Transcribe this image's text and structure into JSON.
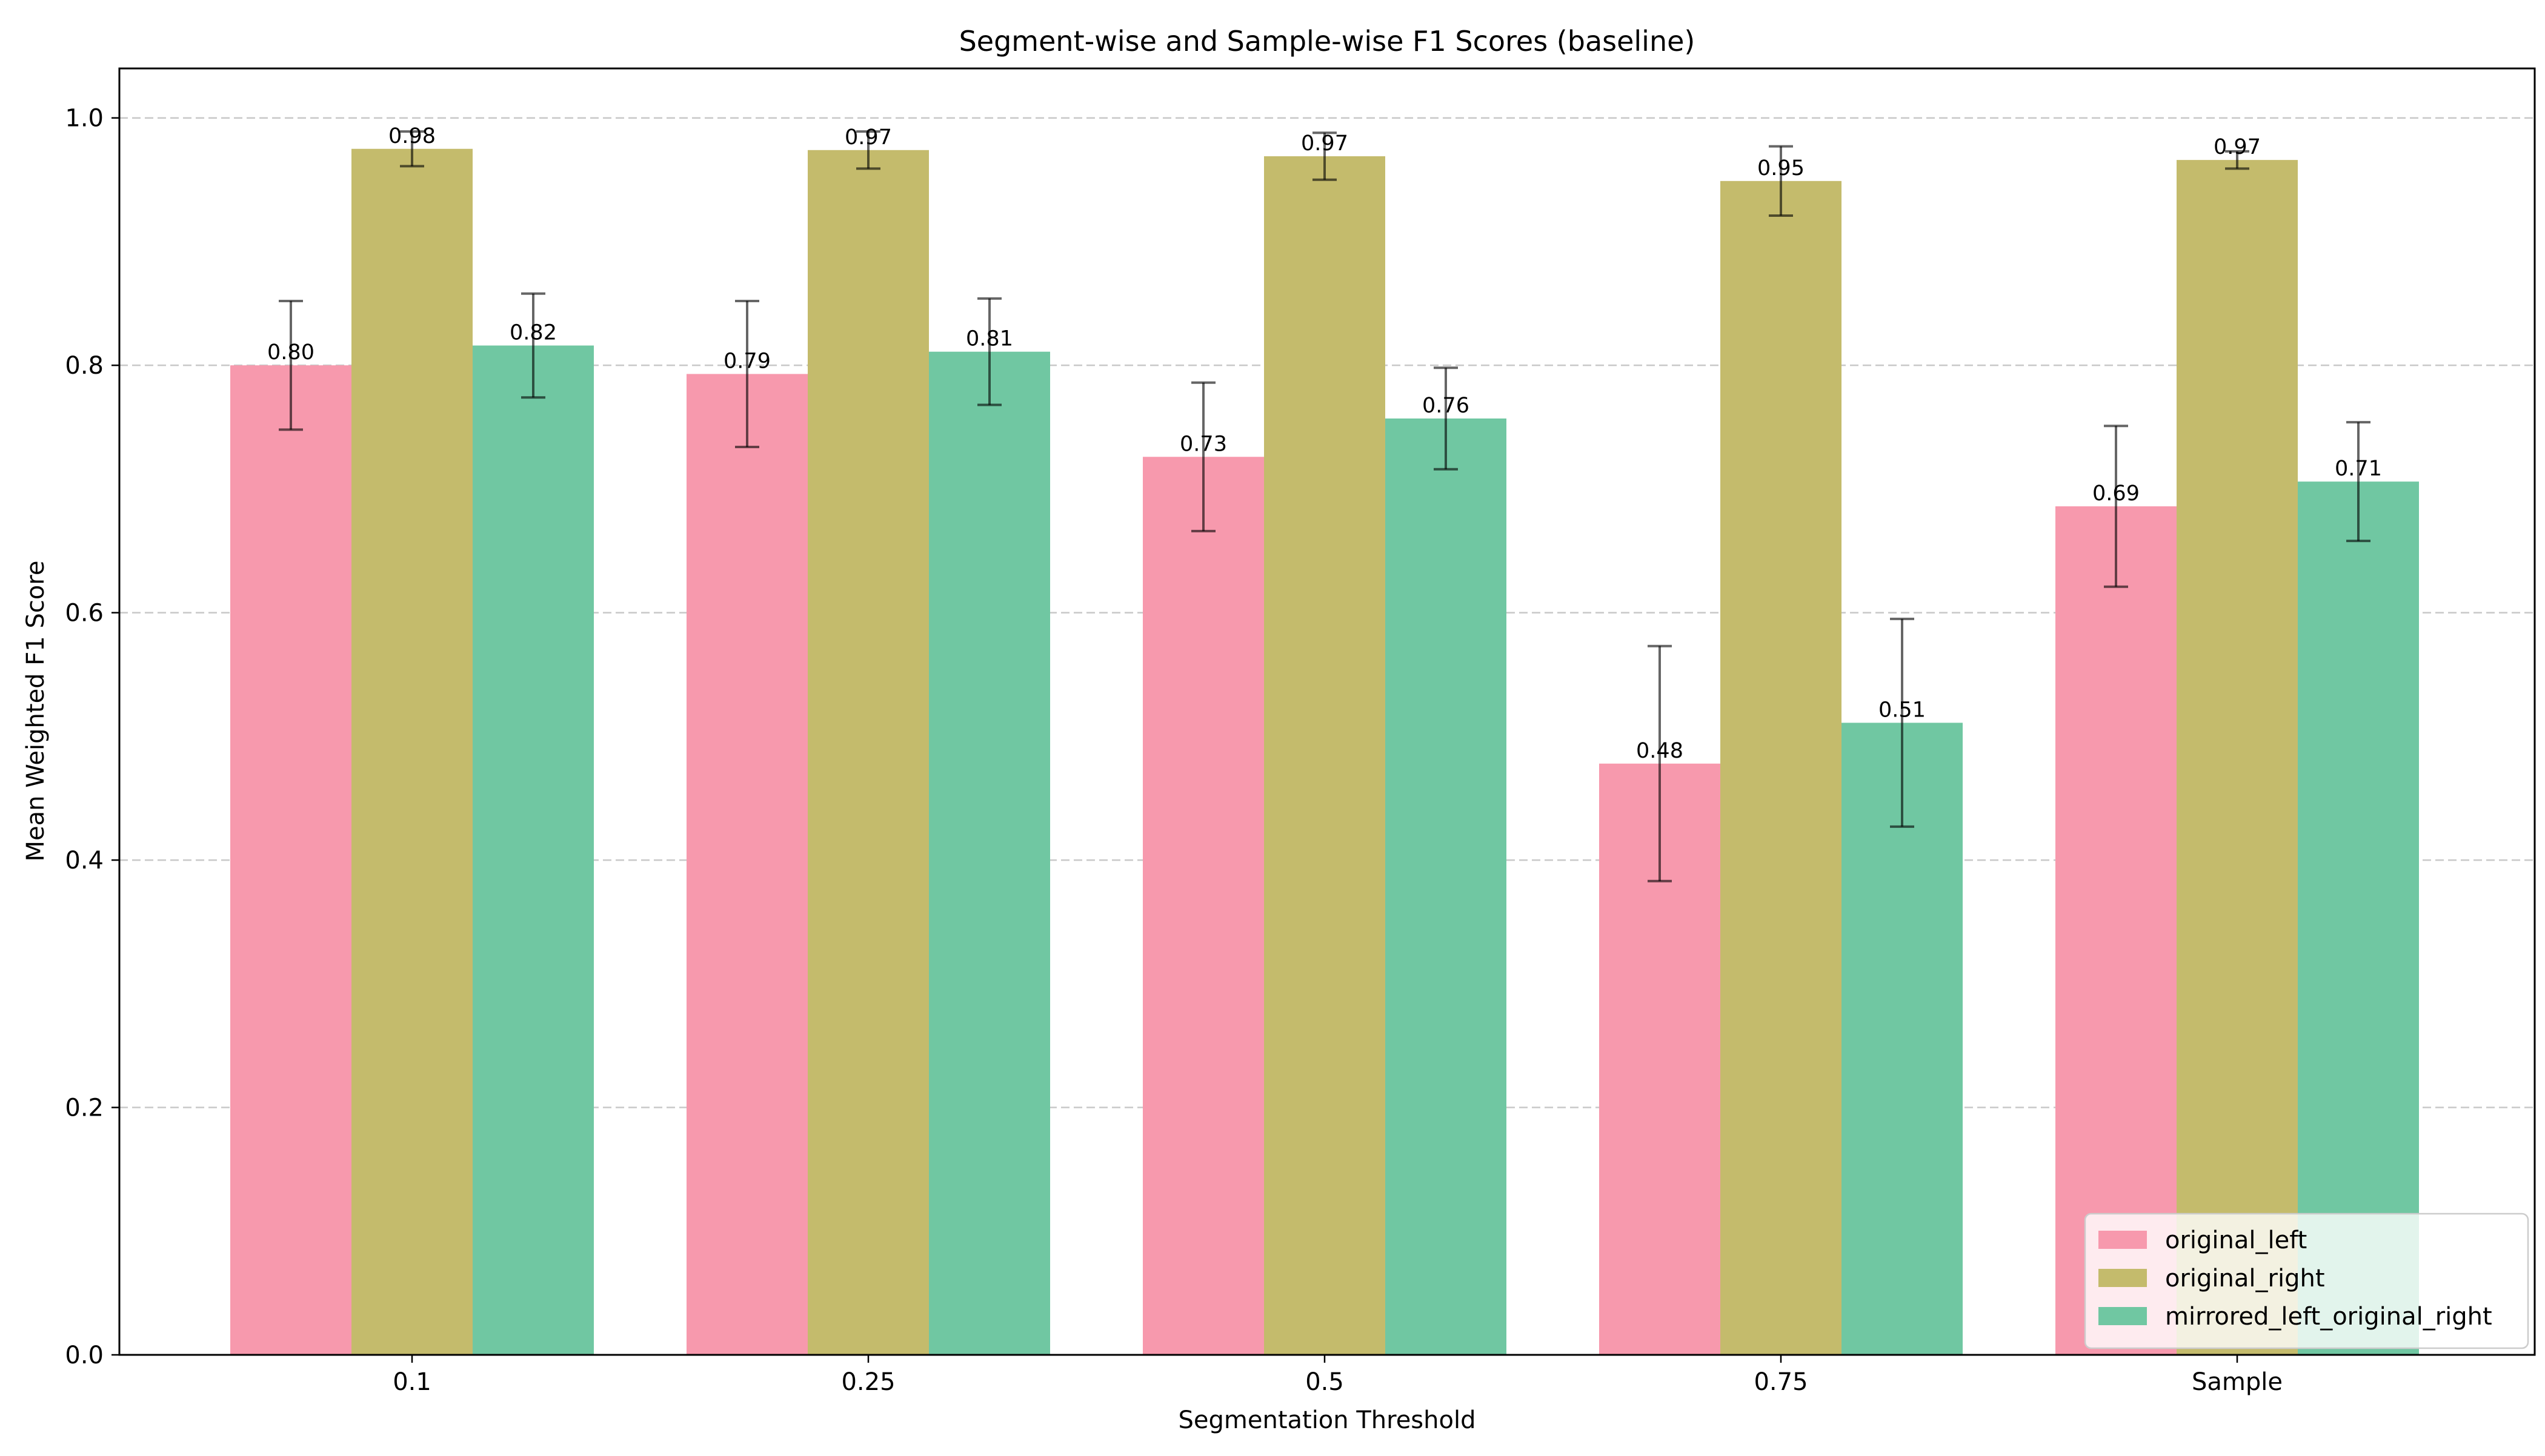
{
  "chart_data": {
    "type": "bar",
    "title": "Segment-wise and Sample-wise F1 Scores (baseline)",
    "xlabel": "Segmentation Threshold",
    "ylabel": "Mean Weighted F1 Score",
    "categories": [
      "0.1",
      "0.25",
      "0.5",
      "0.75",
      "Sample"
    ],
    "ylim": [
      0,
      1.04
    ],
    "yticks": [
      0.0,
      0.2,
      0.4,
      0.6,
      0.8,
      1.0
    ],
    "ytick_labels": [
      "0.0",
      "0.2",
      "0.4",
      "0.6",
      "0.8",
      "1.0"
    ],
    "grid": "y-dashed",
    "legend_position": "lower-right",
    "series": [
      {
        "name": "original_left",
        "color": "#f799ad",
        "values": [
          0.8,
          0.793,
          0.726,
          0.478,
          0.686
        ],
        "errors": [
          0.052,
          0.059,
          0.06,
          0.095,
          0.065
        ],
        "labels": [
          "0.80",
          "0.79",
          "0.73",
          "0.48",
          "0.69"
        ]
      },
      {
        "name": "original_right",
        "color": "#c4bb6c",
        "values": [
          0.975,
          0.974,
          0.969,
          0.949,
          0.966
        ],
        "errors": [
          0.014,
          0.015,
          0.019,
          0.028,
          0.007
        ],
        "labels": [
          "0.98",
          "0.97",
          "0.97",
          "0.95",
          "0.97"
        ]
      },
      {
        "name": "mirrored_left_original_right",
        "color": "#70c7a2",
        "values": [
          0.816,
          0.811,
          0.757,
          0.511,
          0.706
        ],
        "errors": [
          0.042,
          0.043,
          0.041,
          0.084,
          0.048
        ],
        "labels": [
          "0.82",
          "0.81",
          "0.76",
          "0.51",
          "0.71"
        ]
      }
    ]
  }
}
